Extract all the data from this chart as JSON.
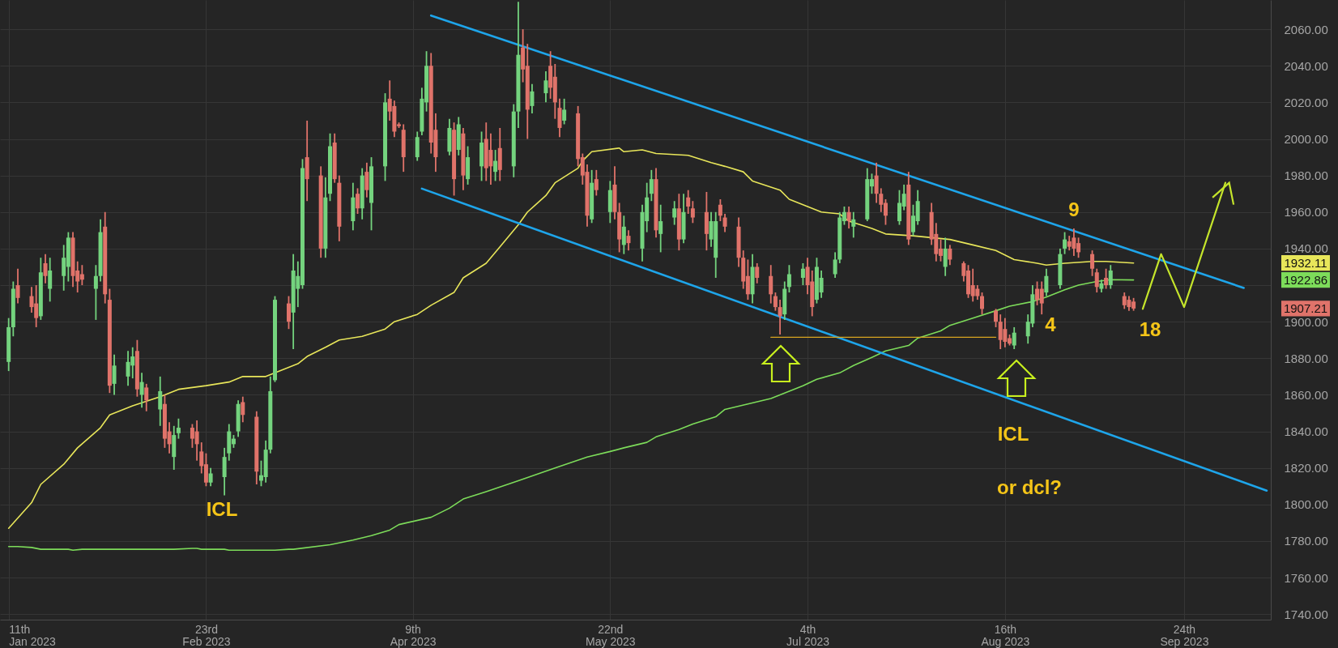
{
  "chart_data": {
    "type": "candlestick",
    "x": [
      "2023-01-11",
      "2023-01-12",
      "2023-01-13",
      "2023-01-16",
      "2023-01-17",
      "2023-01-18",
      "2023-01-19",
      "2023-01-20",
      "2023-01-23",
      "2023-01-24",
      "2023-01-25",
      "2023-01-26",
      "2023-01-27",
      "2023-01-30",
      "2023-01-31",
      "2023-02-01",
      "2023-02-02",
      "2023-02-03",
      "2023-02-06",
      "2023-02-07",
      "2023-02-08",
      "2023-02-09",
      "2023-02-10",
      "2023-02-13",
      "2023-02-14",
      "2023-02-15",
      "2023-02-16",
      "2023-02-17",
      "2023-02-20",
      "2023-02-21",
      "2023-02-22",
      "2023-02-23",
      "2023-02-24",
      "2023-02-27",
      "2023-02-28",
      "2023-03-01",
      "2023-03-02",
      "2023-03-03",
      "2023-03-06",
      "2023-03-07",
      "2023-03-08",
      "2023-03-09",
      "2023-03-10",
      "2023-03-13",
      "2023-03-14",
      "2023-03-15",
      "2023-03-16",
      "2023-03-17",
      "2023-03-20",
      "2023-03-21",
      "2023-03-22",
      "2023-03-23",
      "2023-03-24",
      "2023-03-27",
      "2023-03-28",
      "2023-03-29",
      "2023-03-30",
      "2023-03-31",
      "2023-04-03",
      "2023-04-04",
      "2023-04-05",
      "2023-04-06",
      "2023-04-07",
      "2023-04-10",
      "2023-04-11",
      "2023-04-12",
      "2023-04-13",
      "2023-04-14",
      "2023-04-17",
      "2023-04-18",
      "2023-04-19",
      "2023-04-20",
      "2023-04-21",
      "2023-04-24",
      "2023-04-25",
      "2023-04-26",
      "2023-04-27",
      "2023-04-28",
      "2023-05-01",
      "2023-05-02",
      "2023-05-03",
      "2023-05-04",
      "2023-05-05",
      "2023-05-08",
      "2023-05-09",
      "2023-05-10",
      "2023-05-11",
      "2023-05-12",
      "2023-05-15",
      "2023-05-16",
      "2023-05-17",
      "2023-05-18",
      "2023-05-19",
      "2023-05-22",
      "2023-05-23",
      "2023-05-24",
      "2023-05-25",
      "2023-05-26",
      "2023-05-29",
      "2023-05-30",
      "2023-05-31",
      "2023-06-01",
      "2023-06-02",
      "2023-06-05",
      "2023-06-06",
      "2023-06-07",
      "2023-06-08",
      "2023-06-09",
      "2023-06-12",
      "2023-06-13",
      "2023-06-14",
      "2023-06-15",
      "2023-06-16",
      "2023-06-19",
      "2023-06-20",
      "2023-06-21",
      "2023-06-22",
      "2023-06-23",
      "2023-06-26",
      "2023-06-27",
      "2023-06-28",
      "2023-06-29",
      "2023-06-30",
      "2023-07-03",
      "2023-07-04",
      "2023-07-05",
      "2023-07-06",
      "2023-07-07",
      "2023-07-10",
      "2023-07-11",
      "2023-07-12",
      "2023-07-13",
      "2023-07-14",
      "2023-07-17",
      "2023-07-18",
      "2023-07-19",
      "2023-07-20",
      "2023-07-21",
      "2023-07-24",
      "2023-07-25",
      "2023-07-26",
      "2023-07-27",
      "2023-07-28",
      "2023-07-31",
      "2023-08-01",
      "2023-08-02",
      "2023-08-03",
      "2023-08-04",
      "2023-08-07",
      "2023-08-08",
      "2023-08-09",
      "2023-08-10",
      "2023-08-11",
      "2023-08-14",
      "2023-08-15",
      "2023-08-16",
      "2023-08-17",
      "2023-08-18",
      "2023-08-21",
      "2023-08-22",
      "2023-08-23",
      "2023-08-24",
      "2023-08-25",
      "2023-08-28",
      "2023-08-29",
      "2023-08-30",
      "2023-08-31",
      "2023-09-01",
      "2023-09-04",
      "2023-09-05",
      "2023-09-06",
      "2023-09-07",
      "2023-09-08",
      "2023-09-11",
      "2023-09-12",
      "2023-09-13"
    ],
    "ohlc": [
      [
        1878,
        1902,
        1873,
        1897
      ],
      [
        1897,
        1922,
        1892,
        1918
      ],
      [
        1920,
        1929,
        1910,
        1913
      ],
      [
        1914,
        1919,
        1905,
        1908
      ],
      [
        1910,
        1920,
        1897,
        1902
      ],
      [
        1903,
        1935,
        1901,
        1927
      ],
      [
        1932,
        1937,
        1921,
        1925
      ],
      [
        1918,
        1935,
        1911,
        1928
      ],
      [
        1925,
        1942,
        1917,
        1935
      ],
      [
        1930,
        1949,
        1922,
        1946
      ],
      [
        1946,
        1949,
        1919,
        1925
      ],
      [
        1928,
        1933,
        1916,
        1922
      ],
      [
        1926,
        1931,
        1920,
        1923
      ],
      [
        1918,
        1931,
        1901,
        1925
      ],
      [
        1925,
        1956,
        1922,
        1949
      ],
      [
        1952,
        1960,
        1910,
        1915
      ],
      [
        1912,
        1918,
        1861,
        1865
      ],
      [
        1866,
        1882,
        1860,
        1876
      ],
      [
        1870,
        1884,
        1865,
        1878
      ],
      [
        1876,
        1886,
        1869,
        1881
      ],
      [
        1884,
        1890,
        1859,
        1863
      ],
      [
        1860,
        1872,
        1853,
        1867
      ],
      [
        1864,
        1866,
        1851,
        1857
      ],
      [
        1852,
        1870,
        1843,
        1862
      ],
      [
        1855,
        1860,
        1831,
        1836
      ],
      [
        1840,
        1845,
        1828,
        1833
      ],
      [
        1826,
        1843,
        1819,
        1838
      ],
      [
        1839,
        1847,
        1836,
        1842
      ],
      [
        1842,
        1844,
        1831,
        1836
      ],
      [
        1840,
        1846,
        1824,
        1833
      ],
      [
        1829,
        1834,
        1817,
        1821
      ],
      [
        1822,
        1828,
        1810,
        1812
      ],
      [
        1812,
        1820,
        1810,
        1817
      ],
      [
        1815,
        1831,
        1805,
        1826
      ],
      [
        1828,
        1844,
        1824,
        1840
      ],
      [
        1833,
        1838,
        1831,
        1836
      ],
      [
        1840,
        1857,
        1837,
        1855
      ],
      [
        1856,
        1859,
        1845,
        1849
      ],
      [
        1848,
        1851,
        1811,
        1818
      ],
      [
        1813,
        1824,
        1810,
        1816
      ],
      [
        1815,
        1835,
        1812,
        1830
      ],
      [
        1830,
        1870,
        1828,
        1862
      ],
      [
        1868,
        1914,
        1867,
        1912
      ],
      [
        1910,
        1914,
        1896,
        1900
      ],
      [
        1905,
        1937,
        1885,
        1928
      ],
      [
        1918,
        1933,
        1908,
        1925
      ],
      [
        1920,
        1989,
        1918,
        1984
      ],
      [
        1990,
        2010,
        1966,
        1978
      ],
      [
        1980,
        1985,
        1935,
        1940
      ],
      [
        1940,
        1979,
        1935,
        1968
      ],
      [
        1970,
        2003,
        1966,
        1996
      ],
      [
        1998,
        2003,
        1976,
        1978
      ],
      [
        1976,
        1980,
        1944,
        1952
      ],
      [
        1955,
        1976,
        1950,
        1968
      ],
      [
        1970,
        1973,
        1959,
        1962
      ],
      [
        1962,
        1984,
        1956,
        1980
      ],
      [
        1982,
        1987,
        1968,
        1972
      ],
      [
        1965,
        1990,
        1950,
        1985
      ],
      [
        1985,
        2025,
        1977,
        2020
      ],
      [
        2022,
        2032,
        2010,
        2015
      ],
      [
        2018,
        2021,
        2001,
        2004
      ],
      [
        2008,
        2009,
        2006,
        2007
      ],
      [
        2005,
        2008,
        1982,
        1990
      ],
      [
        1990,
        2004,
        1988,
        2001
      ],
      [
        2004,
        2028,
        2002,
        2022
      ],
      [
        2020,
        2048,
        2015,
        2040
      ],
      [
        2040,
        2047,
        1992,
        1998
      ],
      [
        2005,
        2014,
        1982,
        1990
      ],
      [
        1993,
        2011,
        1991,
        2006
      ],
      [
        2005,
        2009,
        1969,
        1978
      ],
      [
        1994,
        2012,
        1991,
        2008
      ],
      [
        2003,
        2006,
        1972,
        1980
      ],
      [
        1978,
        1996,
        1975,
        1990
      ],
      [
        1985,
        2004,
        1977,
        1998
      ],
      [
        2000,
        2009,
        1977,
        1984
      ],
      [
        1994,
        2003,
        1975,
        1985
      ],
      [
        1982,
        1994,
        1977,
        1988
      ],
      [
        1995,
        2006,
        1977,
        1983
      ],
      [
        1985,
        2019,
        1979,
        2015
      ],
      [
        2015,
        2075,
        2006,
        2046
      ],
      [
        2050,
        2060,
        2031,
        2038
      ],
      [
        2040,
        2052,
        2000,
        2016
      ],
      [
        2018,
        2030,
        2014,
        2026
      ],
      [
        2025,
        2037,
        2020,
        2032
      ],
      [
        2040,
        2048,
        2022,
        2028
      ],
      [
        2034,
        2041,
        2011,
        2020
      ],
      [
        2017,
        2022,
        2001,
        2006
      ],
      [
        2010,
        2022,
        2008,
        2016
      ],
      [
        2014,
        2018,
        1985,
        1989
      ],
      [
        1990,
        1992,
        1975,
        1980
      ],
      [
        1982,
        1986,
        1952,
        1958
      ],
      [
        1956,
        1983,
        1954,
        1976
      ],
      [
        1978,
        1983,
        1969,
        1972
      ],
      [
        1960,
        1977,
        1954,
        1972
      ],
      [
        1975,
        1985,
        1956,
        1960
      ],
      [
        1960,
        1965,
        1938,
        1945
      ],
      [
        1942,
        1958,
        1937,
        1952
      ],
      [
        1947,
        1950,
        1939,
        1943
      ],
      [
        1940,
        1964,
        1933,
        1960
      ],
      [
        1955,
        1976,
        1949,
        1968
      ],
      [
        1970,
        1983,
        1966,
        1978
      ],
      [
        1978,
        1984,
        1946,
        1950
      ],
      [
        1948,
        1964,
        1938,
        1955
      ],
      [
        1957,
        1966,
        1953,
        1962
      ],
      [
        1962,
        1970,
        1939,
        1945
      ],
      [
        1945,
        1970,
        1943,
        1960
      ],
      [
        1968,
        1972,
        1959,
        1963
      ],
      [
        1962,
        1966,
        1954,
        1957
      ],
      [
        1960,
        1971,
        1939,
        1948
      ],
      [
        1945,
        1960,
        1941,
        1955
      ],
      [
        1935,
        1960,
        1924,
        1955
      ],
      [
        1964,
        1967,
        1955,
        1958
      ],
      [
        1957,
        1959,
        1949,
        1952
      ],
      [
        1952,
        1957,
        1930,
        1935
      ],
      [
        1935,
        1939,
        1918,
        1922
      ],
      [
        1925,
        1934,
        1912,
        1915
      ],
      [
        1915,
        1937,
        1910,
        1930
      ],
      [
        1930,
        1932,
        1921,
        1924
      ],
      [
        1925,
        1931,
        1910,
        1915
      ],
      [
        1914,
        1916,
        1906,
        1908
      ],
      [
        1908,
        1912,
        1893,
        1903
      ],
      [
        1904,
        1922,
        1901,
        1918
      ],
      [
        1919,
        1931,
        1916,
        1926
      ],
      [
        1924,
        1932,
        1920,
        1929
      ],
      [
        1930,
        1935,
        1915,
        1920
      ],
      [
        1922,
        1928,
        1903,
        1908
      ],
      [
        1912,
        1935,
        1910,
        1930
      ],
      [
        1916,
        1928,
        1913,
        1924
      ],
      [
        1926,
        1938,
        1924,
        1934
      ],
      [
        1934,
        1960,
        1932,
        1957
      ],
      [
        1955,
        1963,
        1953,
        1960
      ],
      [
        1960,
        1963,
        1951,
        1955
      ],
      [
        1952,
        1960,
        1946,
        1956
      ],
      [
        1956,
        1984,
        1955,
        1978
      ],
      [
        1974,
        1981,
        1970,
        1978
      ],
      [
        1980,
        1987,
        1965,
        1970
      ],
      [
        1970,
        1973,
        1960,
        1964
      ],
      [
        1965,
        1967,
        1953,
        1958
      ],
      [
        1955,
        1972,
        1953,
        1965
      ],
      [
        1963,
        1975,
        1961,
        1970
      ],
      [
        1975,
        1982,
        1942,
        1945
      ],
      [
        1949,
        1964,
        1947,
        1958
      ],
      [
        1955,
        1972,
        1953,
        1966
      ],
      [
        1960,
        1965,
        1942,
        1945
      ],
      [
        1948,
        1954,
        1933,
        1937
      ],
      [
        1940,
        1945,
        1933,
        1936
      ],
      [
        1930,
        1946,
        1925,
        1940
      ],
      [
        1940,
        1942,
        1931,
        1934
      ],
      [
        1932,
        1933,
        1922,
        1925
      ],
      [
        1928,
        1931,
        1913,
        1915
      ],
      [
        1920,
        1929,
        1911,
        1914
      ],
      [
        1918,
        1920,
        1912,
        1914
      ],
      [
        1914,
        1916,
        1904,
        1907
      ],
      [
        1906,
        1907,
        1897,
        1900
      ],
      [
        1900,
        1904,
        1885,
        1890
      ],
      [
        1896,
        1902,
        1886,
        1889
      ],
      [
        1891,
        1893,
        1887,
        1888
      ],
      [
        1887,
        1897,
        1885,
        1894
      ],
      [
        1892,
        1904,
        1888,
        1900
      ],
      [
        1899,
        1920,
        1897,
        1915
      ],
      [
        1918,
        1922,
        1909,
        1912
      ],
      [
        1918,
        1922,
        1904,
        1910
      ],
      [
        1916,
        1929,
        1914,
        1925
      ],
      [
        1920,
        1940,
        1918,
        1937
      ],
      [
        1940,
        1949,
        1937,
        1945
      ],
      [
        1944,
        1947,
        1939,
        1941
      ],
      [
        1946,
        1951,
        1936,
        1940
      ],
      [
        1943,
        1946,
        1935,
        1938
      ],
      [
        1937,
        1939,
        1925,
        1929
      ],
      [
        1927,
        1929,
        1916,
        1919
      ],
      [
        1918,
        1923,
        1916,
        1921
      ],
      [
        1924,
        1929,
        1918,
        1920
      ],
      [
        1920,
        1931,
        1918,
        1928
      ],
      [
        1914,
        1916,
        1907,
        1909
      ],
      [
        1912,
        1914,
        1906,
        1908
      ],
      [
        1911,
        1913,
        1906,
        1907.21
      ]
    ],
    "colors": [
      "#74d37e",
      "#74d37e",
      "#e0736a",
      "#e0736a",
      "#e0736a",
      "#74d37e",
      "#e0736a",
      "#74d37e",
      "#74d37e",
      "#74d37e",
      "#e0736a",
      "#e0736a",
      "#e0736a",
      "#74d37e",
      "#74d37e",
      "#e0736a",
      "#e0736a",
      "#74d37e",
      "#74d37e",
      "#74d37e",
      "#e0736a",
      "#74d37e",
      "#e0736a",
      "#74d37e",
      "#e0736a",
      "#e0736a",
      "#74d37e",
      "#74d37e",
      "#e0736a",
      "#e0736a",
      "#e0736a",
      "#e0736a",
      "#74d37e",
      "#74d37e",
      "#74d37e",
      "#74d37e",
      "#74d37e",
      "#e0736a",
      "#e0736a",
      "#74d37e",
      "#74d37e",
      "#74d37e",
      "#74d37e",
      "#e0736a",
      "#74d37e",
      "#74d37e",
      "#74d37e",
      "#e0736a",
      "#e0736a",
      "#74d37e",
      "#74d37e",
      "#e0736a",
      "#e0736a",
      "#74d37e",
      "#e0736a",
      "#74d37e",
      "#e0736a",
      "#74d37e",
      "#74d37e",
      "#e0736a",
      "#e0736a",
      "#e0736a",
      "#e0736a",
      "#74d37e",
      "#74d37e",
      "#74d37e",
      "#e0736a",
      "#e0736a",
      "#74d37e",
      "#e0736a",
      "#74d37e",
      "#e0736a",
      "#74d37e",
      "#74d37e",
      "#e0736a",
      "#e0736a",
      "#74d37e",
      "#e0736a",
      "#74d37e",
      "#74d37e",
      "#e0736a",
      "#e0736a",
      "#74d37e",
      "#74d37e",
      "#e0736a",
      "#e0736a",
      "#e0736a",
      "#74d37e",
      "#e0736a",
      "#e0736a",
      "#e0736a",
      "#74d37e",
      "#e0736a",
      "#74d37e",
      "#e0736a",
      "#e0736a",
      "#74d37e",
      "#e0736a",
      "#74d37e",
      "#74d37e",
      "#74d37e",
      "#e0736a",
      "#74d37e",
      "#74d37e",
      "#e0736a",
      "#74d37e",
      "#e0736a",
      "#e0736a",
      "#e0736a",
      "#74d37e",
      "#74d37e",
      "#e0736a",
      "#e0736a",
      "#e0736a",
      "#e0736a",
      "#e0736a",
      "#74d37e",
      "#e0736a",
      "#e0736a",
      "#e0736a",
      "#e0736a",
      "#74d37e",
      "#74d37e",
      "#74d37e",
      "#e0736a",
      "#e0736a",
      "#74d37e",
      "#74d37e",
      "#74d37e",
      "#74d37e",
      "#74d37e",
      "#e0736a",
      "#74d37e",
      "#74d37e",
      "#74d37e",
      "#e0736a",
      "#e0736a",
      "#e0736a",
      "#74d37e",
      "#74d37e",
      "#e0736a",
      "#74d37e",
      "#74d37e",
      "#e0736a",
      "#e0736a",
      "#e0736a",
      "#74d37e",
      "#e0736a",
      "#e0736a",
      "#e0736a",
      "#e0736a",
      "#e0736a",
      "#e0736a",
      "#e0736a",
      "#e0736a",
      "#e0736a",
      "#e0736a",
      "#74d37e",
      "#74d37e",
      "#74d37e",
      "#e0736a",
      "#e0736a",
      "#74d37e",
      "#74d37e",
      "#74d37e",
      "#e0736a",
      "#e0736a",
      "#e0736a",
      "#e0736a",
      "#e0736a",
      "#74d37e",
      "#e0736a",
      "#74d37e",
      "#e0736a",
      "#e0736a",
      "#e0736a"
    ],
    "series": [
      {
        "type": "line",
        "color": "#e8e65a",
        "x": [
          "2023-01-11",
          "2023-01-16",
          "2023-01-18",
          "2023-01-23",
          "2023-01-26",
          "2023-01-31",
          "2023-02-02",
          "2023-02-07",
          "2023-02-13",
          "2023-02-17",
          "2023-02-23",
          "2023-02-28",
          "2023-03-03",
          "2023-03-08",
          "2023-03-10",
          "2023-03-15",
          "2023-03-17",
          "2023-03-21",
          "2023-03-24",
          "2023-03-29",
          "2023-04-03",
          "2023-04-05",
          "2023-04-10",
          "2023-04-13",
          "2023-04-18",
          "2023-04-20",
          "2023-04-25",
          "2023-04-28",
          "2023-05-02",
          "2023-05-04",
          "2023-05-08",
          "2023-05-10",
          "2023-05-15",
          "2023-05-16",
          "2023-05-18",
          "2023-05-24",
          "2023-05-25",
          "2023-05-29",
          "2023-06-01",
          "2023-06-08",
          "2023-06-13",
          "2023-06-16",
          "2023-06-20",
          "2023-06-22",
          "2023-06-28",
          "2023-06-30",
          "2023-07-04",
          "2023-07-07",
          "2023-07-11",
          "2023-07-13",
          "2023-07-18",
          "2023-07-21",
          "2023-07-27",
          "2023-07-31",
          "2023-08-04",
          "2023-08-09",
          "2023-08-14",
          "2023-08-18",
          "2023-08-23",
          "2023-08-25",
          "2023-08-29",
          "2023-09-04",
          "2023-09-07",
          "2023-09-13"
        ],
        "values": [
          1787,
          1801,
          1811,
          1822,
          1831,
          1842,
          1849,
          1854,
          1859,
          1863,
          1865,
          1867,
          1870,
          1870,
          1872,
          1877,
          1881,
          1886,
          1890,
          1892,
          1896,
          1900,
          1904,
          1909,
          1916,
          1924,
          1932,
          1941,
          1953,
          1960,
          1969,
          1976,
          1984,
          1988,
          1993,
          1995,
          1993,
          1994,
          1992,
          1991,
          1987,
          1985,
          1982,
          1977,
          1972,
          1967,
          1963,
          1960,
          1959,
          1955,
          1951,
          1948,
          1947,
          1946,
          1945,
          1942,
          1939,
          1934,
          1932,
          1931,
          1932,
          1933,
          1933,
          1932.11
        ]
      },
      {
        "type": "line",
        "color": "#7ddc5a",
        "x": [
          "2023-01-11",
          "2023-01-13",
          "2023-01-16",
          "2023-01-18",
          "2023-01-24",
          "2023-01-25",
          "2023-01-27",
          "2023-02-16",
          "2023-02-20",
          "2023-02-21",
          "2023-02-22",
          "2023-02-27",
          "2023-02-28",
          "2023-03-10",
          "2023-03-13",
          "2023-03-14",
          "2023-03-22",
          "2023-03-27",
          "2023-03-31",
          "2023-04-04",
          "2023-04-06",
          "2023-04-13",
          "2023-04-17",
          "2023-04-20",
          "2023-04-25",
          "2023-05-02",
          "2023-05-10",
          "2023-05-17",
          "2023-05-22",
          "2023-05-25",
          "2023-05-30",
          "2023-06-01",
          "2023-06-06",
          "2023-06-09",
          "2023-06-14",
          "2023-06-16",
          "2023-06-21",
          "2023-06-26",
          "2023-06-29",
          "2023-07-03",
          "2023-07-06",
          "2023-07-11",
          "2023-07-14",
          "2023-07-18",
          "2023-07-21",
          "2023-07-26",
          "2023-07-28",
          "2023-08-02",
          "2023-08-04",
          "2023-08-09",
          "2023-08-14",
          "2023-08-17",
          "2023-08-22",
          "2023-08-25",
          "2023-08-29",
          "2023-09-01",
          "2023-09-05",
          "2023-09-08",
          "2023-09-13"
        ],
        "values": [
          1777,
          1777,
          1776.5,
          1775.5,
          1775.5,
          1775,
          1775.5,
          1775.5,
          1776,
          1776,
          1775.5,
          1775.5,
          1775,
          1775,
          1775.5,
          1775.5,
          1778,
          1780.5,
          1783,
          1786,
          1789,
          1793,
          1798,
          1803,
          1807,
          1813,
          1820,
          1826,
          1829,
          1831,
          1834,
          1837,
          1841,
          1844,
          1848,
          1852,
          1855,
          1858,
          1861,
          1865,
          1868.5,
          1872,
          1876,
          1880.5,
          1884,
          1887,
          1891,
          1895,
          1898,
          1902,
          1906,
          1908.5,
          1911,
          1913.5,
          1917.5,
          1920,
          1922,
          1923,
          1922.86
        ]
      },
      {
        "type": "line",
        "color": "#1ea5ea",
        "x": [
          "2023-04-13",
          "2023-10-07"
        ],
        "values": [
          2067.5,
          1918.5
        ]
      },
      {
        "type": "line",
        "color": "#1ea5ea",
        "x": [
          "2023-04-11",
          "2023-10-12"
        ],
        "values": [
          1972.8,
          1807.6
        ]
      },
      {
        "type": "line",
        "color": "#d9a520",
        "x": [
          "2023-06-26",
          "2023-08-14"
        ],
        "values": [
          1891.5,
          1891.5
        ]
      },
      {
        "type": "line",
        "color": "#c5e52b",
        "x": [
          "2023-09-15",
          "2023-09-19",
          "2023-09-24",
          "2023-10-03"
        ],
        "values": [
          1907,
          1937,
          1908,
          1976
        ]
      }
    ],
    "xlim": [
      "2023-01-10",
      "2023-10-12"
    ],
    "xticks": [
      {
        "value": "2023-01-11",
        "label": "11th\nJan 2023"
      },
      {
        "value": "2023-02-23",
        "label": "23rd\nFeb 2023"
      },
      {
        "value": "2023-04-09",
        "label": "9th\nApr 2023"
      },
      {
        "value": "2023-05-22",
        "label": "22nd\nMay 2023"
      },
      {
        "value": "2023-07-04",
        "label": "4th\nJul 2023"
      },
      {
        "value": "2023-08-16",
        "label": "16th\nAug 2023"
      },
      {
        "value": "2023-09-24",
        "label": "24th\nSep 2023"
      }
    ],
    "ylim": [
      1737,
      2076
    ],
    "yticks": [
      {
        "value": 1740,
        "label": "1740.00"
      },
      {
        "value": 1760,
        "label": "1760.00"
      },
      {
        "value": 1780,
        "label": "1780.00"
      },
      {
        "value": 1800,
        "label": "1800.00"
      },
      {
        "value": 1820,
        "label": "1820.00"
      },
      {
        "value": 1840,
        "label": "1840.00"
      },
      {
        "value": 1860,
        "label": "1860.00"
      },
      {
        "value": 1880,
        "label": "1880.00"
      },
      {
        "value": 1900,
        "label": "1900.00"
      },
      {
        "value": 1920,
        "label": null
      },
      {
        "value": 1940,
        "label": "1940.00"
      },
      {
        "value": 1960,
        "label": "1960.00"
      },
      {
        "value": 1980,
        "label": "1980.00"
      },
      {
        "value": 2000,
        "label": "2000.00"
      },
      {
        "value": 2020,
        "label": "2020.00"
      },
      {
        "value": 2040,
        "label": "2040.00"
      },
      {
        "value": 2060,
        "label": "2060.00"
      }
    ],
    "grid": true,
    "annotations": [
      "ICL",
      "ICL",
      "or dcl?",
      "9",
      "4",
      "18",
      "1932.11",
      "1922.86",
      "1907.21"
    ]
  }
}
